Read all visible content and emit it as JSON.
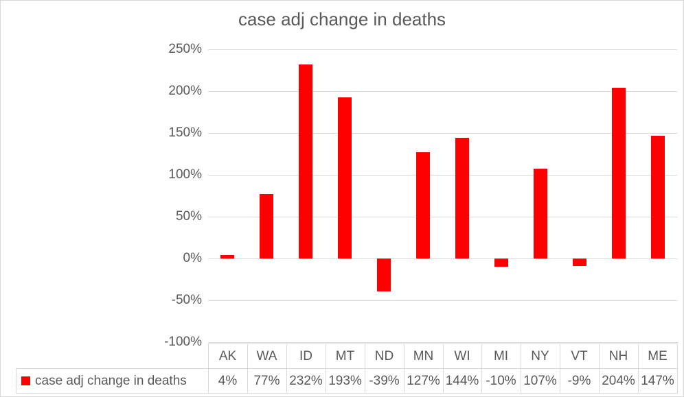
{
  "chart_data": {
    "type": "bar",
    "title": "case adj change in deaths",
    "categories": [
      "AK",
      "WA",
      "ID",
      "MT",
      "ND",
      "MN",
      "WI",
      "MI",
      "NY",
      "VT",
      "NH",
      "ME"
    ],
    "series": [
      {
        "name": "case adj change in deaths",
        "values": [
          4,
          77,
          232,
          193,
          -39,
          127,
          144,
          -10,
          107,
          -9,
          204,
          147
        ],
        "color": "#ff0000"
      }
    ],
    "value_labels": [
      "4%",
      "77%",
      "232%",
      "193%",
      "-39%",
      "127%",
      "144%",
      "-10%",
      "107%",
      "-9%",
      "204%",
      "147%"
    ],
    "xlabel": "",
    "ylabel": "",
    "ylim": [
      -100,
      250
    ],
    "ytick_step": 50,
    "ytick_labels": [
      "250%",
      "200%",
      "150%",
      "100%",
      "50%",
      "0%",
      "-50%",
      "-100%"
    ],
    "grid": true,
    "legend_position": "data-table-bottom",
    "colors": {
      "bar": "#ff0000",
      "gridline": "#d9d9d9",
      "table_border": "#d9d9d9",
      "text": "#595959",
      "background": "#ffffff",
      "chart_border": "#d9d9d9"
    }
  }
}
